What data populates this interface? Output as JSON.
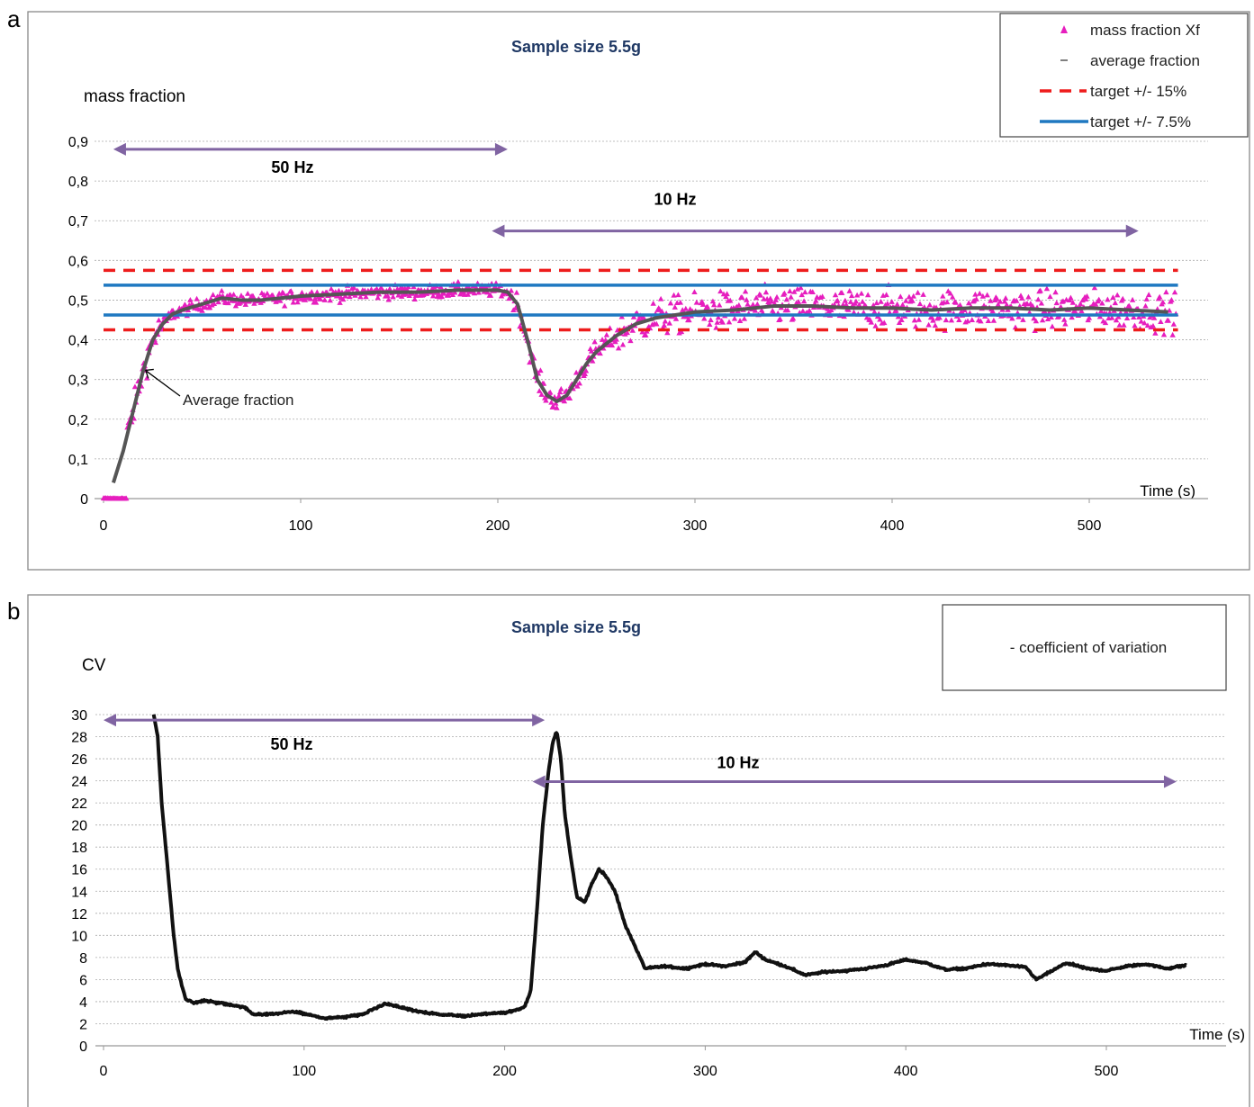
{
  "chart_data": [
    {
      "panel": "a",
      "type": "scatter",
      "title": "Sample size  5.5g",
      "ylabel": "mass fraction",
      "xlabel": "Time (s)",
      "xlim": [
        0,
        545
      ],
      "ylim": [
        0,
        0.9
      ],
      "x_ticks": [
        "0",
        "100",
        "200",
        "300",
        "400",
        "500"
      ],
      "y_ticks": [
        "0",
        "0,1",
        "0,2",
        "0,3",
        "0,4",
        "0,5",
        "0,6",
        "0,7",
        "0,8",
        "0,9"
      ],
      "grid": "horizontal dotted",
      "legend": {
        "placement": "top-right",
        "entries": [
          "mass fraction Xf",
          "average fraction",
          "target +/-  15%",
          "target +/- 7.5%"
        ]
      },
      "reference_lines": [
        {
          "name": "target +/-  15%",
          "style": "dashed",
          "color": "#ee1c1c",
          "values": [
            0.425,
            0.575
          ]
        },
        {
          "name": "target +/- 7.5%",
          "style": "solid",
          "color": "#1f78c1",
          "values": [
            0.4625,
            0.5375
          ]
        }
      ],
      "series": [
        {
          "name": "mass fraction Xf",
          "marker": "triangle",
          "color": "#e61ebe"
        },
        {
          "name": "average fraction",
          "style": "line",
          "color": "#555555",
          "x": [
            5,
            10,
            15,
            20,
            25,
            30,
            35,
            40,
            50,
            60,
            70,
            80,
            100,
            120,
            140,
            160,
            180,
            200,
            205,
            210,
            215,
            220,
            225,
            230,
            235,
            240,
            245,
            250,
            260,
            270,
            280,
            300,
            320,
            340,
            360,
            380,
            400,
            420,
            440,
            460,
            480,
            500,
            520,
            540
          ],
          "y": [
            0.04,
            0.12,
            0.22,
            0.32,
            0.4,
            0.44,
            0.465,
            0.475,
            0.49,
            0.505,
            0.5,
            0.5,
            0.51,
            0.515,
            0.52,
            0.52,
            0.525,
            0.525,
            0.52,
            0.49,
            0.4,
            0.3,
            0.26,
            0.245,
            0.26,
            0.3,
            0.34,
            0.37,
            0.41,
            0.44,
            0.455,
            0.47,
            0.475,
            0.485,
            0.485,
            0.48,
            0.48,
            0.475,
            0.48,
            0.48,
            0.475,
            0.48,
            0.475,
            0.47
          ]
        }
      ],
      "annotations": [
        {
          "text": "50 Hz",
          "from": 5,
          "to": 205,
          "y": 0.88
        },
        {
          "text": "10 Hz",
          "from": 197,
          "to": 525,
          "y": 0.69
        },
        {
          "text": "Average fraction",
          "points_to_x": 20,
          "points_to_y": 0.33
        }
      ]
    },
    {
      "panel": "b",
      "type": "line",
      "title": "Sample size  5.5g",
      "ylabel": "CV",
      "xlabel": "Time (s)",
      "xlim": [
        0,
        560
      ],
      "ylim": [
        0,
        30
      ],
      "x_ticks": [
        "0",
        "100",
        "200",
        "300",
        "400",
        "500"
      ],
      "y_ticks": [
        "0",
        "2",
        "4",
        "6",
        "8",
        "10",
        "12",
        "14",
        "16",
        "18",
        "20",
        "22",
        "24",
        "26",
        "28",
        "30"
      ],
      "grid": "horizontal dotted",
      "legend": {
        "placement": "top-right",
        "entries": [
          "- coefficient of variation"
        ]
      },
      "series": [
        {
          "name": "coefficient of variation",
          "color": "#111111",
          "x": [
            25,
            27,
            29,
            31,
            33,
            35,
            37,
            39,
            41,
            45,
            50,
            60,
            70,
            75,
            85,
            95,
            105,
            110,
            120,
            130,
            140,
            150,
            160,
            170,
            180,
            190,
            200,
            205,
            210,
            213,
            216,
            219,
            222,
            224,
            226,
            228,
            230,
            233,
            236,
            240,
            243,
            247,
            250,
            255,
            260,
            265,
            270,
            280,
            290,
            300,
            310,
            320,
            325,
            330,
            340,
            350,
            360,
            370,
            380,
            390,
            400,
            410,
            420,
            430,
            440,
            450,
            460,
            465,
            470,
            480,
            490,
            500,
            510,
            520,
            530,
            540
          ],
          "y": [
            30,
            28,
            22,
            18,
            14,
            10,
            7,
            5.5,
            4.2,
            3.9,
            4.1,
            3.8,
            3.5,
            2.8,
            2.9,
            3.1,
            2.7,
            2.5,
            2.6,
            2.9,
            3.8,
            3.4,
            3.0,
            2.8,
            2.7,
            2.9,
            3.0,
            3.2,
            3.5,
            5.0,
            12,
            20,
            25,
            27.5,
            28.5,
            26,
            21,
            17,
            13.5,
            13,
            14.5,
            16,
            15.5,
            14,
            11,
            9,
            7,
            7.2,
            7.0,
            7.4,
            7.2,
            7.6,
            8.5,
            7.8,
            7.2,
            6.4,
            6.7,
            6.8,
            7.0,
            7.3,
            7.8,
            7.5,
            6.9,
            7.0,
            7.4,
            7.3,
            7.1,
            6.0,
            6.5,
            7.5,
            7.0,
            6.8,
            7.2,
            7.4,
            7.0,
            7.3
          ]
        }
      ],
      "annotations": [
        {
          "text": "50 Hz",
          "from": 0,
          "to": 220,
          "y": 29.5
        },
        {
          "text": "10 Hz",
          "from": 213,
          "to": 535,
          "y": 24.5
        }
      ]
    }
  ],
  "panels": {
    "a": "a",
    "b": "b"
  }
}
